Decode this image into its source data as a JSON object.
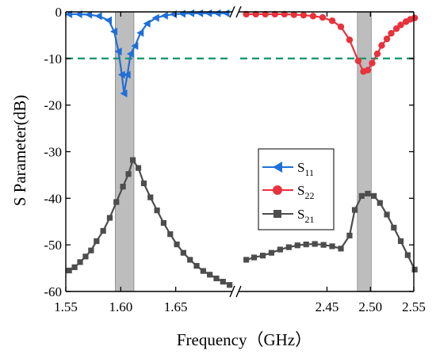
{
  "chart_data": {
    "type": "line",
    "xlabel": "Frequency（GHz）",
    "ylabel": "S Parameter(dB)",
    "ylim": [
      -60,
      0
    ],
    "grid": false,
    "legend_placement": "center-right",
    "x_axis": {
      "broken": true,
      "left_segment": {
        "range": [
          1.55,
          1.7
        ],
        "ticks": [
          1.55,
          1.6,
          1.65
        ],
        "tick_labels": [
          "1.55",
          "1.60",
          "1.65"
        ]
      },
      "right_segment": {
        "range": [
          2.35,
          2.55
        ],
        "ticks": [
          2.45,
          2.5,
          2.55
        ],
        "tick_labels": [
          "2.45",
          "2.50",
          "2.55"
        ]
      }
    },
    "y_ticks": [
      0,
      -10,
      -20,
      -30,
      -40,
      -50,
      -60
    ],
    "y_tick_labels": [
      "0",
      "-10",
      "-20",
      "-30",
      "-40",
      "-50",
      "-60"
    ],
    "reference_line": {
      "y": -10,
      "style": "dashed",
      "color": "#1a9a6c"
    },
    "shaded_bands": [
      {
        "x": [
          1.595,
          1.612
        ],
        "color": "#bdbdbd"
      },
      {
        "x": [
          2.485,
          2.501
        ],
        "color": "#bdbdbd"
      }
    ],
    "series": [
      {
        "name": "S11",
        "label_main": "S",
        "label_sub": "11",
        "color": "#1f6fd8",
        "marker": "triangle-left",
        "x": [
          1.553,
          1.562,
          1.571,
          1.58,
          1.589,
          1.594,
          1.598,
          1.601,
          1.603,
          1.606,
          1.609,
          1.613,
          1.618,
          1.624,
          1.632,
          1.64,
          1.648,
          1.656,
          1.664,
          1.672,
          1.68,
          1.688,
          1.696
        ],
        "y": [
          -0.5,
          -0.5,
          -0.6,
          -0.9,
          -1.8,
          -4.2,
          -8.5,
          -13.5,
          -17.5,
          -13.5,
          -9.0,
          -7.3,
          -4.5,
          -2.5,
          -1.3,
          -0.8,
          -0.5,
          -0.4,
          -0.3,
          -0.3,
          -0.3,
          -0.3,
          -0.3
        ]
      },
      {
        "name": "S22",
        "label_main": "S",
        "label_sub": "22",
        "color": "#e8323c",
        "marker": "circle",
        "x": [
          2.357,
          2.368,
          2.379,
          2.39,
          2.401,
          2.412,
          2.423,
          2.434,
          2.445,
          2.456,
          2.466,
          2.476,
          2.486,
          2.492,
          2.497,
          2.502,
          2.508,
          2.513,
          2.519,
          2.524,
          2.53,
          2.535,
          2.541,
          2.546,
          2.551
        ],
        "y": [
          -0.5,
          -0.5,
          -0.5,
          -0.5,
          -0.5,
          -0.6,
          -0.7,
          -0.9,
          -1.2,
          -1.9,
          -3.2,
          -6.0,
          -10.5,
          -12.8,
          -12.5,
          -11.0,
          -9.0,
          -7.2,
          -5.8,
          -4.6,
          -3.6,
          -2.8,
          -2.1,
          -1.6,
          -1.3
        ]
      },
      {
        "name": "S21",
        "label_main": "S",
        "label_sub": "21",
        "color": "#4d4d4d",
        "marker": "square",
        "x": [
          1.553,
          1.558,
          1.563,
          1.568,
          1.573,
          1.578,
          1.584,
          1.59,
          1.596,
          1.602,
          1.607,
          1.611,
          1.616,
          1.621,
          1.627,
          1.633,
          1.639,
          1.645,
          1.651,
          1.657,
          1.663,
          1.669,
          1.675,
          1.681,
          1.687,
          1.693,
          1.699,
          2.357,
          2.366,
          2.376,
          2.386,
          2.396,
          2.406,
          2.416,
          2.426,
          2.436,
          2.446,
          2.456,
          2.466,
          2.476,
          2.482,
          2.49,
          2.497,
          2.504,
          2.511,
          2.519,
          2.527,
          2.535,
          2.543,
          2.551
        ],
        "y": [
          -55.5,
          -54.8,
          -53.7,
          -52.5,
          -51.2,
          -49.2,
          -47.0,
          -44.2,
          -40.8,
          -37.5,
          -34.8,
          -31.8,
          -33.5,
          -36.8,
          -39.8,
          -42.6,
          -45.3,
          -47.7,
          -49.9,
          -51.7,
          -53.2,
          -54.5,
          -55.6,
          -56.4,
          -57.2,
          -57.9,
          -58.6,
          -53.2,
          -52.7,
          -52.3,
          -51.7,
          -51.0,
          -50.5,
          -50.1,
          -49.9,
          -49.8,
          -50.0,
          -50.3,
          -50.8,
          -48.0,
          -42.5,
          -39.5,
          -39.0,
          -39.5,
          -41.0,
          -43.5,
          -46.3,
          -49.2,
          -52.2,
          -55.3
        ]
      }
    ]
  },
  "legend": {
    "s11_main": "S",
    "s11_sub": "11",
    "s22_main": "S",
    "s22_sub": "22",
    "s21_main": "S",
    "s21_sub": "21"
  },
  "colors": {
    "s11": "#1f6fd8",
    "s22": "#e8323c",
    "s21": "#4d4d4d",
    "reference": "#1a9a6c",
    "band": "#bdbdbd"
  }
}
